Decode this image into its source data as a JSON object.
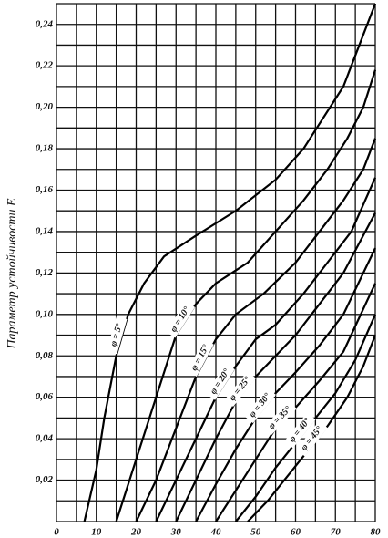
{
  "chart_data": {
    "type": "line",
    "y_label": "Параметр устойчивости E",
    "xlim": [
      0,
      80
    ],
    "ylim": [
      0,
      0.25
    ],
    "xticks": [
      0,
      10,
      20,
      30,
      40,
      50,
      60,
      70,
      80
    ],
    "yticks": [
      {
        "value": 0.02,
        "label": "0,02"
      },
      {
        "value": 0.04,
        "label": "0,04"
      },
      {
        "value": 0.06,
        "label": "0,06"
      },
      {
        "value": 0.08,
        "label": "0,08"
      },
      {
        "value": 0.1,
        "label": "0,10"
      },
      {
        "value": 0.12,
        "label": "0,12"
      },
      {
        "value": 0.14,
        "label": "0,14"
      },
      {
        "value": 0.16,
        "label": "0,16"
      },
      {
        "value": 0.18,
        "label": "0,18"
      },
      {
        "value": 0.2,
        "label": "0,20"
      },
      {
        "value": 0.22,
        "label": "0,22"
      },
      {
        "value": 0.24,
        "label": "0,24"
      }
    ],
    "x_minor_grid": [
      5,
      15,
      25,
      35,
      45,
      55,
      65,
      75
    ],
    "y_minor_grid": [
      0.01,
      0.03,
      0.05,
      0.07,
      0.09,
      0.11,
      0.13,
      0.15,
      0.17,
      0.19,
      0.21,
      0.23,
      0.25
    ],
    "grid": true,
    "series": [
      {
        "name": "φ = 5°",
        "color": "#000000",
        "x": [
          7,
          10,
          12,
          15,
          18,
          22,
          27,
          35,
          45,
          55,
          62,
          67,
          72,
          76,
          80
        ],
        "values": [
          0,
          0.025,
          0.05,
          0.08,
          0.1,
          0.115,
          0.128,
          0.138,
          0.15,
          0.165,
          0.18,
          0.195,
          0.21,
          0.23,
          0.25
        ]
      },
      {
        "name": "φ = 10°",
        "color": "#000000",
        "x": [
          15,
          20,
          25,
          30,
          35,
          40,
          48,
          55,
          62,
          68,
          73,
          77,
          80
        ],
        "values": [
          0,
          0.03,
          0.06,
          0.09,
          0.105,
          0.115,
          0.125,
          0.14,
          0.155,
          0.17,
          0.185,
          0.2,
          0.218
        ]
      },
      {
        "name": "φ = 15°",
        "color": "#000000",
        "x": [
          20,
          25,
          30,
          35,
          40,
          45,
          52,
          60,
          66,
          72,
          77,
          80
        ],
        "values": [
          0,
          0.02,
          0.045,
          0.07,
          0.088,
          0.1,
          0.11,
          0.125,
          0.14,
          0.155,
          0.17,
          0.185
        ]
      },
      {
        "name": "φ = 20°",
        "color": "#000000",
        "x": [
          25,
          30,
          35,
          40,
          45,
          50,
          55,
          62,
          68,
          74,
          80
        ],
        "values": [
          0,
          0.02,
          0.04,
          0.06,
          0.075,
          0.088,
          0.095,
          0.11,
          0.125,
          0.14,
          0.166
        ]
      },
      {
        "name": "φ = 25°",
        "color": "#000000",
        "x": [
          30,
          35,
          40,
          45,
          50,
          55,
          60,
          66,
          72,
          80
        ],
        "values": [
          0,
          0.02,
          0.04,
          0.058,
          0.07,
          0.08,
          0.09,
          0.105,
          0.12,
          0.149
        ]
      },
      {
        "name": "φ = 30°",
        "color": "#000000",
        "x": [
          35,
          40,
          45,
          50,
          55,
          60,
          66,
          72,
          80
        ],
        "values": [
          0,
          0.018,
          0.035,
          0.05,
          0.062,
          0.072,
          0.085,
          0.1,
          0.132
        ]
      },
      {
        "name": "φ = 35°",
        "color": "#000000",
        "x": [
          40,
          45,
          50,
          55,
          60,
          66,
          72,
          80
        ],
        "values": [
          0,
          0.015,
          0.03,
          0.045,
          0.055,
          0.068,
          0.082,
          0.115
        ]
      },
      {
        "name": "φ = 40°",
        "color": "#000000",
        "x": [
          45,
          50,
          55,
          60,
          65,
          70,
          75,
          80
        ],
        "values": [
          0,
          0.012,
          0.026,
          0.038,
          0.05,
          0.062,
          0.078,
          0.1
        ]
      },
      {
        "name": "φ = 45°",
        "color": "#000000",
        "x": [
          48,
          53,
          58,
          63,
          68,
          73,
          77,
          80
        ],
        "values": [
          0,
          0.01,
          0.022,
          0.034,
          0.046,
          0.06,
          0.075,
          0.09
        ]
      }
    ]
  }
}
